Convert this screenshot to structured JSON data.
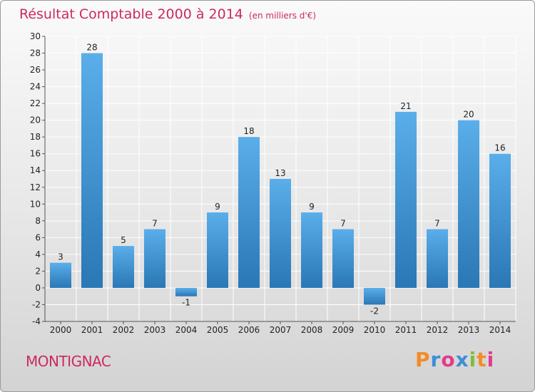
{
  "header": {
    "title": "Résultat Comptable 2000 à 2014",
    "unit": "(en milliers d'€)"
  },
  "footer": {
    "commune": "MONTIGNAC",
    "logo_text": "Proxiti"
  },
  "colors": {
    "title": "#cc2a5f",
    "bar_top": "#5aaeea",
    "bar_bottom": "#2a77b5",
    "logo": [
      "#f28c28",
      "#3b8fd6",
      "#e23b8a",
      "#3b8fd6",
      "#7cbf3a",
      "#f28c28",
      "#e23b8a"
    ]
  },
  "chart_data": {
    "type": "bar",
    "title": "Résultat Comptable 2000 à 2014",
    "subtitle": "(en milliers d'€)",
    "categories": [
      "2000",
      "2001",
      "2002",
      "2003",
      "2004",
      "2005",
      "2006",
      "2007",
      "2008",
      "2009",
      "2010",
      "2011",
      "2012",
      "2013",
      "2014"
    ],
    "values": [
      3,
      28,
      5,
      7,
      -1,
      9,
      18,
      13,
      9,
      7,
      -2,
      21,
      7,
      20,
      16
    ],
    "ylim": [
      -4,
      30
    ],
    "yticks": [
      -4,
      -2,
      0,
      2,
      4,
      6,
      8,
      10,
      12,
      14,
      16,
      18,
      20,
      22,
      24,
      26,
      28,
      30
    ],
    "grid": true,
    "xlabel": "",
    "ylabel": ""
  }
}
